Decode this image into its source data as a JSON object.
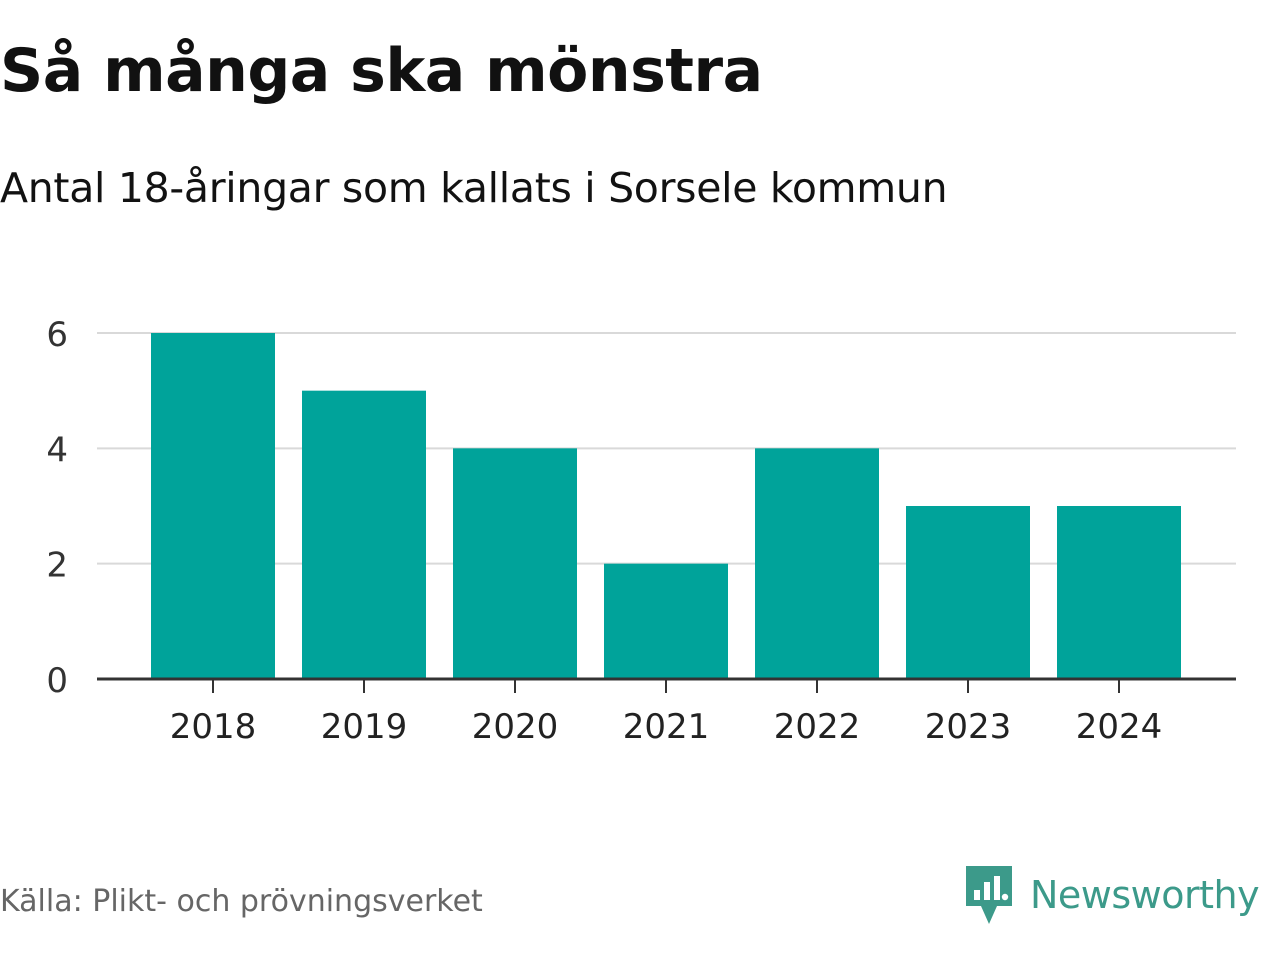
{
  "header": {
    "title": "Så många ska mönstra",
    "subtitle": "Antal 18-åringar som kallats i Sorsele kommun"
  },
  "footer": {
    "source": "Källa: Plikt- och prövningsverket",
    "brand": "Newsworthy"
  },
  "colors": {
    "bar": "#00a39a",
    "grid": "#d9d9d9",
    "axis": "#333333",
    "brand": "#3c9a8a"
  },
  "chart_data": {
    "type": "bar",
    "title": "Så många ska mönstra",
    "subtitle": "Antal 18-åringar som kallats i Sorsele kommun",
    "xlabel": "",
    "ylabel": "",
    "categories": [
      "2018",
      "2019",
      "2020",
      "2021",
      "2022",
      "2023",
      "2024"
    ],
    "values": [
      6,
      5,
      4,
      2,
      4,
      3,
      3
    ],
    "ylim": [
      0,
      6
    ],
    "yticks": [
      0,
      2,
      4,
      6
    ],
    "grid": true,
    "legend": "none"
  }
}
